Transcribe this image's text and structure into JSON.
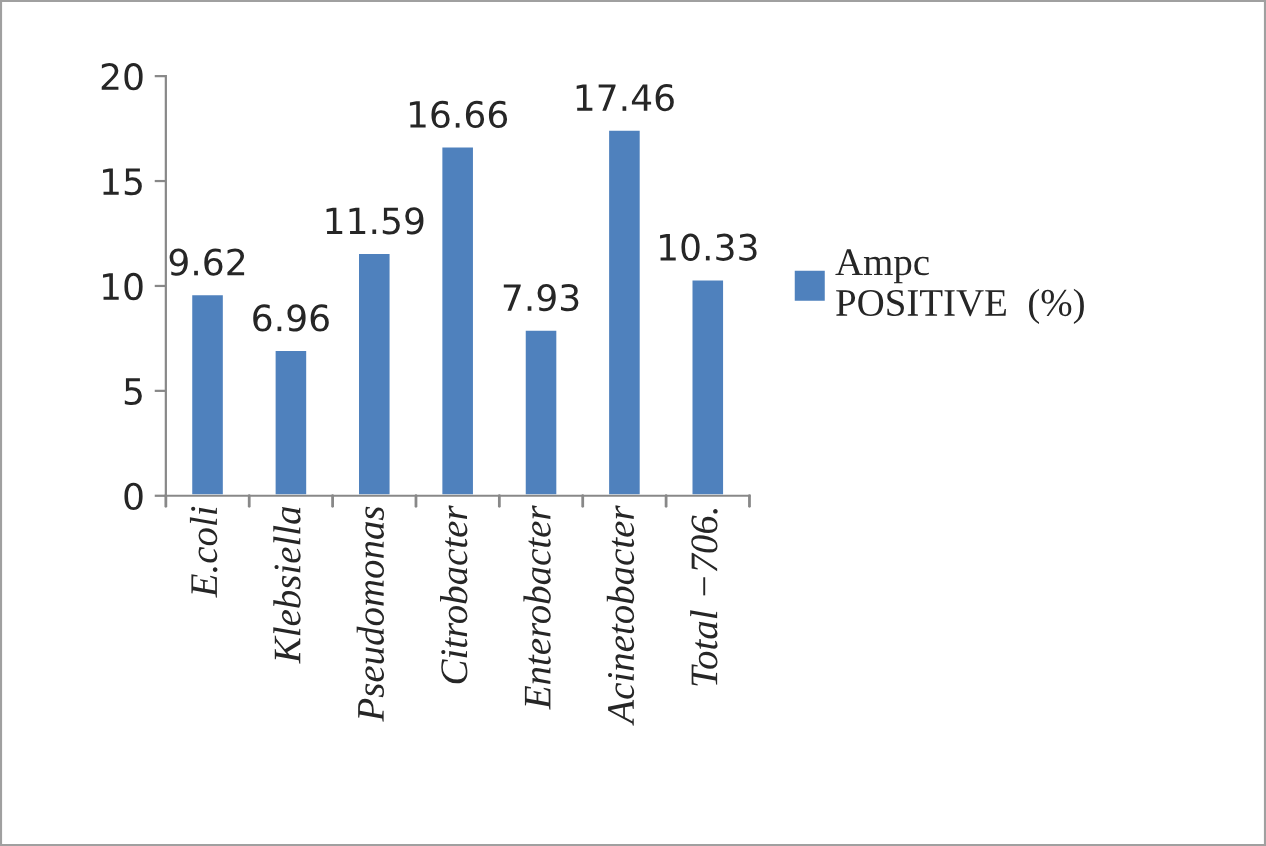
{
  "chart_data": {
    "type": "bar",
    "categories": [
      "E.coli",
      "Klebsiella",
      "Pseudomonas",
      "Citrobacter",
      "Enterobacter",
      "Acinetobacter",
      "Total −706."
    ],
    "series": [
      {
        "name": "Ampc\nPOSITIVE  (%)",
        "color": "#4f81bd",
        "values": [
          9.62,
          6.96,
          11.59,
          16.66,
          7.93,
          17.46,
          10.33
        ]
      }
    ],
    "ylim": [
      0,
      20
    ],
    "yticks": [
      0,
      5,
      10,
      15,
      20
    ],
    "grid": false,
    "legend": "right",
    "data_labels": true
  }
}
